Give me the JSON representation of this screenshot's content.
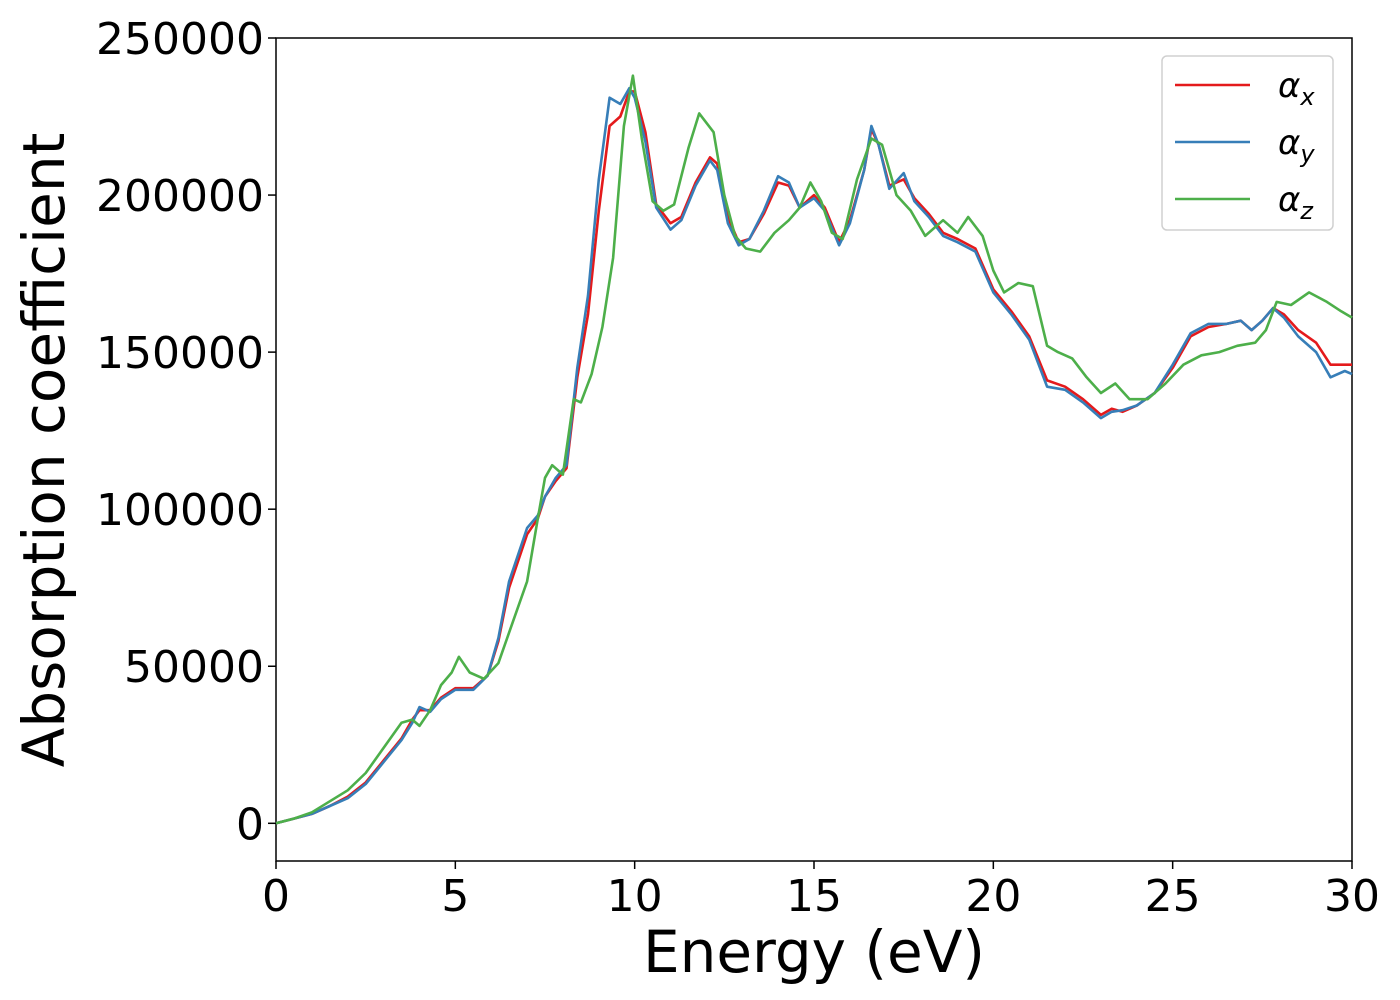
{
  "chart_data": {
    "type": "line",
    "xlabel": "Energy (eV)",
    "ylabel": "Absorption coefficient",
    "xlim": [
      0,
      30
    ],
    "ylim": [
      -12000,
      250000
    ],
    "xticks": [
      0,
      5,
      10,
      15,
      20,
      25,
      30
    ],
    "yticks": [
      0,
      50000,
      100000,
      150000,
      200000,
      250000
    ],
    "grid": false,
    "legend_position": "top-right",
    "colors": {
      "alpha_x": "#e41a1c",
      "alpha_y": "#377eb8",
      "alpha_z": "#4daf4a"
    },
    "series": [
      {
        "name": "α_x",
        "symbol": "α",
        "subscript": "x",
        "color": "#e41a1c",
        "points": [
          [
            0,
            0
          ],
          [
            0.5,
            1500
          ],
          [
            1,
            3000
          ],
          [
            1.5,
            5500
          ],
          [
            2,
            8500
          ],
          [
            2.5,
            13000
          ],
          [
            3,
            20000
          ],
          [
            3.5,
            27000
          ],
          [
            3.8,
            33000
          ],
          [
            4,
            36000
          ],
          [
            4.3,
            36000
          ],
          [
            4.6,
            40000
          ],
          [
            5,
            43000
          ],
          [
            5.5,
            43000
          ],
          [
            5.9,
            47000
          ],
          [
            6.2,
            58000
          ],
          [
            6.5,
            75000
          ],
          [
            7,
            92000
          ],
          [
            7.3,
            97000
          ],
          [
            7.5,
            104000
          ],
          [
            7.8,
            109000
          ],
          [
            8.1,
            113000
          ],
          [
            8.4,
            142000
          ],
          [
            8.7,
            162000
          ],
          [
            9,
            195000
          ],
          [
            9.3,
            222000
          ],
          [
            9.6,
            225000
          ],
          [
            9.85,
            233000
          ],
          [
            10,
            233000
          ],
          [
            10.3,
            220000
          ],
          [
            10.6,
            197000
          ],
          [
            11,
            191000
          ],
          [
            11.3,
            193000
          ],
          [
            11.7,
            204000
          ],
          [
            12.1,
            212000
          ],
          [
            12.3,
            210000
          ],
          [
            12.6,
            193000
          ],
          [
            12.9,
            185000
          ],
          [
            13.2,
            186000
          ],
          [
            13.6,
            194000
          ],
          [
            14,
            204000
          ],
          [
            14.3,
            203000
          ],
          [
            14.6,
            196000
          ],
          [
            15,
            200000
          ],
          [
            15.3,
            196000
          ],
          [
            15.7,
            185000
          ],
          [
            16,
            192000
          ],
          [
            16.4,
            208000
          ],
          [
            16.6,
            221000
          ],
          [
            16.8,
            216000
          ],
          [
            17.1,
            203000
          ],
          [
            17.5,
            205000
          ],
          [
            17.8,
            199000
          ],
          [
            18.2,
            194000
          ],
          [
            18.6,
            188000
          ],
          [
            19,
            186000
          ],
          [
            19.5,
            183000
          ],
          [
            20,
            170000
          ],
          [
            20.5,
            163000
          ],
          [
            21,
            155000
          ],
          [
            21.5,
            141000
          ],
          [
            22,
            139000
          ],
          [
            22.5,
            135000
          ],
          [
            23,
            130000
          ],
          [
            23.3,
            132000
          ],
          [
            23.6,
            131000
          ],
          [
            24,
            133000
          ],
          [
            24.5,
            137000
          ],
          [
            25,
            145000
          ],
          [
            25.5,
            155000
          ],
          [
            26,
            158000
          ],
          [
            26.5,
            159000
          ],
          [
            26.9,
            160000
          ],
          [
            27.2,
            157000
          ],
          [
            27.5,
            160000
          ],
          [
            27.8,
            164000
          ],
          [
            28.1,
            162000
          ],
          [
            28.5,
            157000
          ],
          [
            29,
            153000
          ],
          [
            29.4,
            146000
          ],
          [
            29.8,
            146000
          ],
          [
            30,
            146000
          ]
        ]
      },
      {
        "name": "α_y",
        "symbol": "α",
        "subscript": "y",
        "color": "#377eb8",
        "points": [
          [
            0,
            0
          ],
          [
            0.5,
            1500
          ],
          [
            1,
            3000
          ],
          [
            1.5,
            5500
          ],
          [
            2,
            8000
          ],
          [
            2.5,
            12500
          ],
          [
            3,
            19500
          ],
          [
            3.5,
            26500
          ],
          [
            3.8,
            32000
          ],
          [
            4,
            37000
          ],
          [
            4.3,
            35500
          ],
          [
            4.6,
            39500
          ],
          [
            5,
            42500
          ],
          [
            5.5,
            42500
          ],
          [
            5.9,
            47000
          ],
          [
            6.2,
            59000
          ],
          [
            6.5,
            77000
          ],
          [
            7,
            94000
          ],
          [
            7.3,
            98000
          ],
          [
            7.5,
            104000
          ],
          [
            7.8,
            110000
          ],
          [
            8.1,
            114000
          ],
          [
            8.4,
            145000
          ],
          [
            8.7,
            168000
          ],
          [
            9,
            205000
          ],
          [
            9.3,
            231000
          ],
          [
            9.6,
            229000
          ],
          [
            9.85,
            234000
          ],
          [
            10,
            231000
          ],
          [
            10.3,
            217000
          ],
          [
            10.6,
            196000
          ],
          [
            11,
            189000
          ],
          [
            11.3,
            192000
          ],
          [
            11.7,
            203000
          ],
          [
            12.1,
            211000
          ],
          [
            12.3,
            208000
          ],
          [
            12.6,
            191000
          ],
          [
            12.9,
            184000
          ],
          [
            13.2,
            186000
          ],
          [
            13.6,
            195000
          ],
          [
            14,
            206000
          ],
          [
            14.3,
            204000
          ],
          [
            14.6,
            196000
          ],
          [
            15,
            199000
          ],
          [
            15.3,
            195000
          ],
          [
            15.7,
            184000
          ],
          [
            16,
            191000
          ],
          [
            16.4,
            208000
          ],
          [
            16.6,
            222000
          ],
          [
            16.8,
            216000
          ],
          [
            17.1,
            202000
          ],
          [
            17.5,
            207000
          ],
          [
            17.8,
            198000
          ],
          [
            18.2,
            193000
          ],
          [
            18.6,
            187000
          ],
          [
            19,
            185000
          ],
          [
            19.5,
            182000
          ],
          [
            20,
            169000
          ],
          [
            20.5,
            162000
          ],
          [
            21,
            154000
          ],
          [
            21.5,
            139000
          ],
          [
            22,
            138000
          ],
          [
            22.5,
            134000
          ],
          [
            23,
            129000
          ],
          [
            23.3,
            131000
          ],
          [
            23.6,
            131500
          ],
          [
            24,
            133000
          ],
          [
            24.5,
            137000
          ],
          [
            25,
            146000
          ],
          [
            25.5,
            156000
          ],
          [
            26,
            159000
          ],
          [
            26.5,
            159000
          ],
          [
            26.9,
            160000
          ],
          [
            27.2,
            157000
          ],
          [
            27.5,
            160000
          ],
          [
            27.8,
            164000
          ],
          [
            28.1,
            161000
          ],
          [
            28.5,
            155000
          ],
          [
            29,
            150000
          ],
          [
            29.4,
            142000
          ],
          [
            29.8,
            144000
          ],
          [
            30,
            143000
          ]
        ]
      },
      {
        "name": "α_z",
        "symbol": "α",
        "subscript": "z",
        "color": "#4daf4a",
        "points": [
          [
            0,
            0
          ],
          [
            0.5,
            1500
          ],
          [
            1,
            3500
          ],
          [
            1.5,
            7000
          ],
          [
            2,
            10500
          ],
          [
            2.5,
            16000
          ],
          [
            3,
            24000
          ],
          [
            3.5,
            32000
          ],
          [
            3.8,
            33000
          ],
          [
            4,
            31000
          ],
          [
            4.3,
            36000
          ],
          [
            4.6,
            44000
          ],
          [
            4.9,
            48000
          ],
          [
            5.1,
            53000
          ],
          [
            5.4,
            48000
          ],
          [
            5.8,
            46000
          ],
          [
            6.2,
            51000
          ],
          [
            6.6,
            64000
          ],
          [
            7,
            77000
          ],
          [
            7.3,
            97000
          ],
          [
            7.5,
            110000
          ],
          [
            7.7,
            114000
          ],
          [
            8,
            111000
          ],
          [
            8.3,
            135000
          ],
          [
            8.5,
            134000
          ],
          [
            8.8,
            143000
          ],
          [
            9.1,
            158000
          ],
          [
            9.4,
            180000
          ],
          [
            9.7,
            222000
          ],
          [
            9.95,
            238000
          ],
          [
            10.2,
            218000
          ],
          [
            10.5,
            198000
          ],
          [
            10.8,
            195000
          ],
          [
            11.1,
            197000
          ],
          [
            11.5,
            215000
          ],
          [
            11.8,
            226000
          ],
          [
            12.2,
            220000
          ],
          [
            12.5,
            200000
          ],
          [
            12.8,
            187000
          ],
          [
            13.1,
            183000
          ],
          [
            13.5,
            182000
          ],
          [
            13.9,
            188000
          ],
          [
            14.3,
            192000
          ],
          [
            14.6,
            196000
          ],
          [
            14.9,
            204000
          ],
          [
            15.2,
            198000
          ],
          [
            15.5,
            188000
          ],
          [
            15.8,
            186000
          ],
          [
            16.2,
            205000
          ],
          [
            16.6,
            218000
          ],
          [
            16.9,
            216000
          ],
          [
            17.3,
            200000
          ],
          [
            17.7,
            195000
          ],
          [
            18.1,
            187000
          ],
          [
            18.6,
            192000
          ],
          [
            19,
            188000
          ],
          [
            19.3,
            193000
          ],
          [
            19.7,
            187000
          ],
          [
            20,
            176000
          ],
          [
            20.3,
            169000
          ],
          [
            20.7,
            172000
          ],
          [
            21.1,
            171000
          ],
          [
            21.5,
            152000
          ],
          [
            21.8,
            150000
          ],
          [
            22.2,
            148000
          ],
          [
            22.6,
            142000
          ],
          [
            23,
            137000
          ],
          [
            23.4,
            140000
          ],
          [
            23.8,
            135000
          ],
          [
            24.3,
            135000
          ],
          [
            24.8,
            140000
          ],
          [
            25.3,
            146000
          ],
          [
            25.8,
            149000
          ],
          [
            26.3,
            150000
          ],
          [
            26.8,
            152000
          ],
          [
            27.3,
            153000
          ],
          [
            27.6,
            157000
          ],
          [
            27.9,
            166000
          ],
          [
            28.3,
            165000
          ],
          [
            28.8,
            169000
          ],
          [
            29.3,
            166000
          ],
          [
            29.7,
            163000
          ],
          [
            30,
            161000
          ]
        ]
      }
    ]
  }
}
